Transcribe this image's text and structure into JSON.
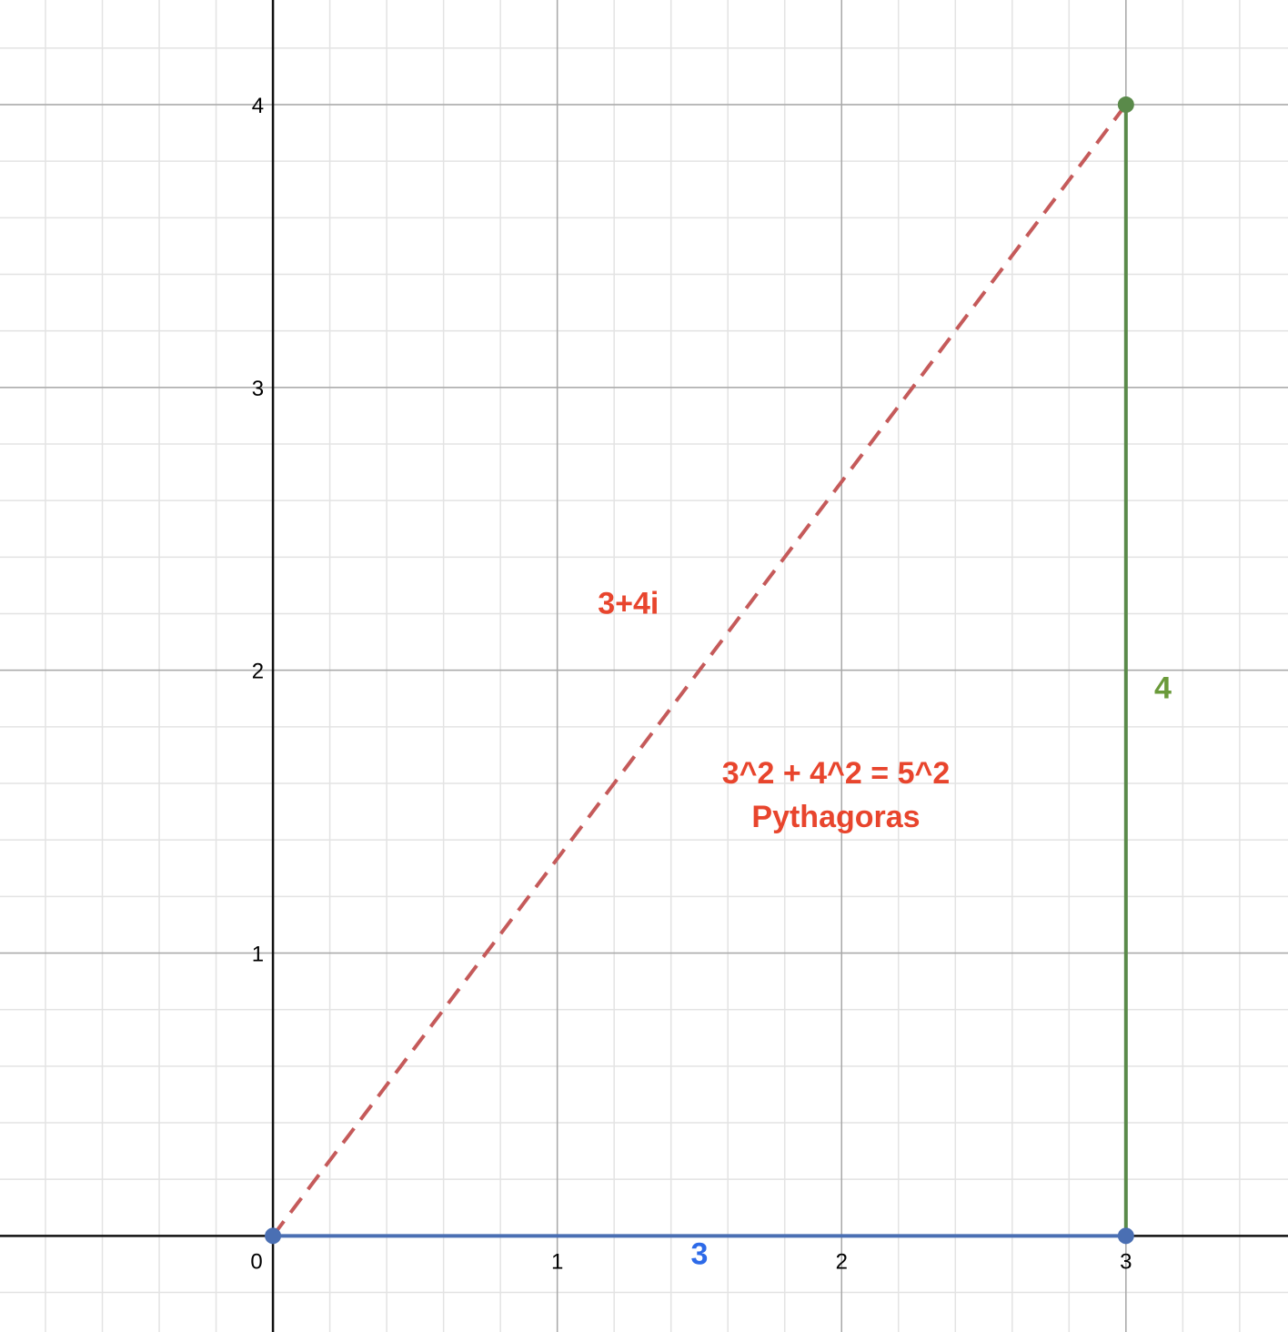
{
  "chart_data": {
    "type": "scatter",
    "title": "",
    "xlabel": "",
    "ylabel": "",
    "xlim": [
      -0.96,
      3.57
    ],
    "ylim": [
      -0.34,
      4.37
    ],
    "grid": true,
    "minor_grid_step": 0.2,
    "x_ticks": [
      "0",
      "1",
      "2",
      "3"
    ],
    "y_ticks": [
      "1",
      "2",
      "3",
      "4"
    ],
    "series": [
      {
        "style": "dashed",
        "color": "#c55a5a",
        "x": [
          0,
          3
        ],
        "y": [
          0,
          4
        ],
        "label": "3+4i",
        "label_color": "#e8452d",
        "label_at": [
          1.25,
          2.2
        ]
      },
      {
        "style": "solid",
        "color": "#4a6fb3",
        "x": [
          0,
          3
        ],
        "y": [
          0,
          0
        ],
        "label": "3",
        "label_color": "#2d6ae8",
        "label_at": [
          1.5,
          -0.1
        ]
      },
      {
        "style": "solid",
        "color": "#5a8a4a",
        "x": [
          3,
          3
        ],
        "y": [
          0,
          4
        ],
        "label": "4",
        "label_color": "#6a9a3a",
        "label_at": [
          3.13,
          1.9
        ]
      }
    ],
    "points": [
      {
        "x": 0,
        "y": 0,
        "color": "#4a6fb3"
      },
      {
        "x": 3,
        "y": 0,
        "color": "#4a6fb3"
      },
      {
        "x": 3,
        "y": 4,
        "color": "#5a8a4a"
      }
    ],
    "annotations": [
      {
        "lines": [
          "3^2 + 4^2 = 5^2",
          "Pythagoras"
        ],
        "color": "#e8452d",
        "at": [
          1.98,
          1.6
        ]
      }
    ]
  }
}
